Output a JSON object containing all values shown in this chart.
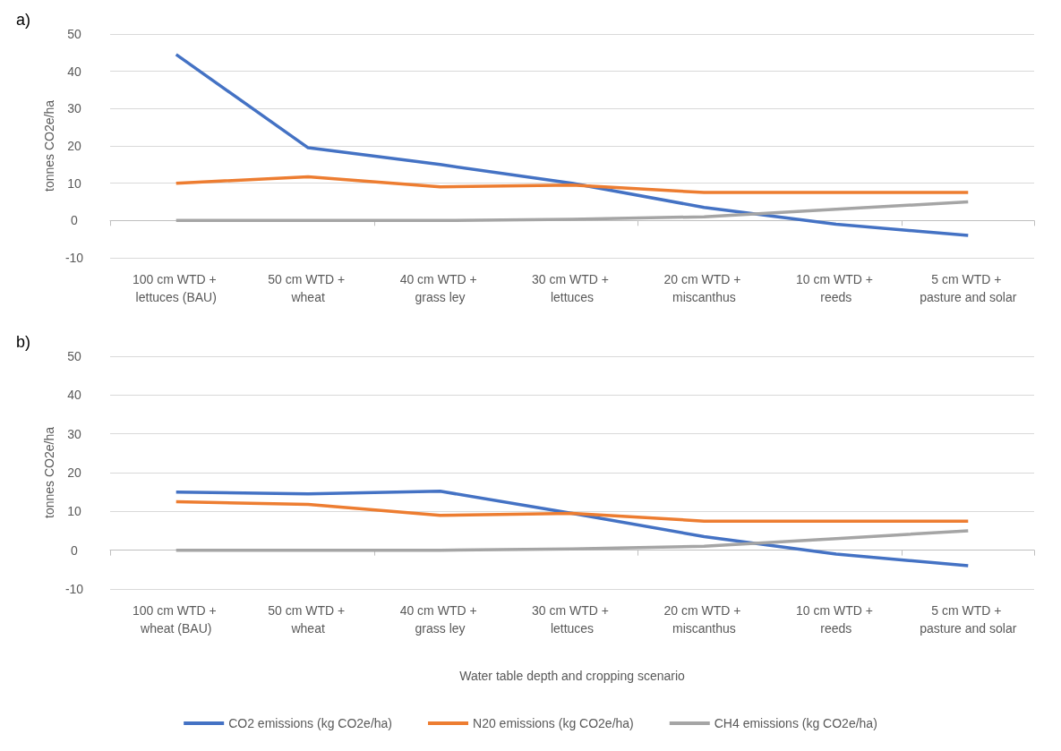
{
  "chart_data": [
    {
      "type": "line",
      "annotations": [
        "a)"
      ],
      "ylabel": "tonnes CO2e/ha",
      "categories": [
        "100 cm WTD + lettuces (BAU)",
        "50 cm WTD + wheat",
        "40 cm WTD + grass ley",
        "30 cm WTD + lettuces",
        "20 cm WTD + miscanthus",
        "10 cm WTD + reeds",
        "5 cm WTD + pasture and solar"
      ],
      "series": [
        {
          "color": "#4472c4",
          "values": [
            44.5,
            19.5,
            15,
            10,
            3.5,
            -1,
            -4
          ]
        },
        {
          "color": "#ed7d31",
          "values": [
            10,
            11.7,
            9,
            9.5,
            7.5,
            7.5,
            7.5
          ]
        },
        {
          "color": "#a5a5a5",
          "values": [
            0,
            0,
            0,
            0.3,
            1,
            3,
            5
          ]
        }
      ],
      "ylim": [
        -10,
        50
      ],
      "yticks": [
        -10,
        0,
        10,
        20,
        30,
        40,
        50
      ],
      "grid": "y",
      "marker": "none",
      "legend": false
    },
    {
      "type": "line",
      "annotations": [
        "b)"
      ],
      "ylabel": "tonnes CO2e/ha",
      "xlabel": "Water table depth and cropping scenario",
      "categories": [
        "100 cm WTD + wheat (BAU)",
        "50 cm WTD + wheat",
        "40 cm WTD + grass ley",
        "30 cm WTD + lettuces",
        "20 cm WTD + miscanthus",
        "10 cm WTD + reeds",
        "5 cm WTD + pasture and solar"
      ],
      "series": [
        {
          "name": "CO2 emissions (kg CO2e/ha)",
          "color": "#4472c4",
          "values": [
            15,
            14.5,
            15.2,
            9.5,
            3.5,
            -1,
            -4
          ]
        },
        {
          "name": "N20 emissions (kg CO2e/ha)",
          "color": "#ed7d31",
          "values": [
            12.5,
            11.8,
            9,
            9.5,
            7.5,
            7.5,
            7.5
          ]
        },
        {
          "name": "CH4 emissions (kg CO2e/ha)",
          "color": "#a5a5a5",
          "values": [
            0,
            0,
            0,
            0.3,
            1,
            3,
            5
          ]
        }
      ],
      "ylim": [
        -10,
        50
      ],
      "yticks": [
        -10,
        0,
        10,
        20,
        30,
        40,
        50
      ],
      "grid": "y",
      "marker": "none",
      "legend": "bottom"
    }
  ]
}
